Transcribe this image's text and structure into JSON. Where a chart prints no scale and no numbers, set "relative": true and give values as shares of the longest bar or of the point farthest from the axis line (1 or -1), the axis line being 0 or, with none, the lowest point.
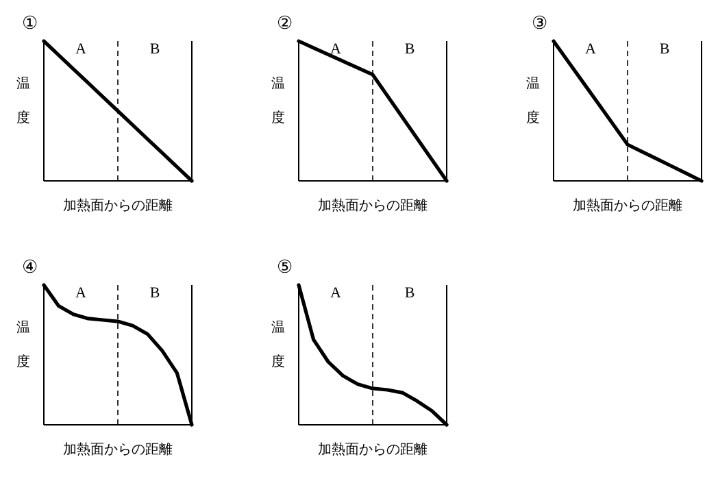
{
  "chart_data": [
    {
      "type": "line",
      "title": "①",
      "ylabel": "温度",
      "xlabel": "加熱面からの距離",
      "relative": true,
      "categories": [
        null,
        null,
        null,
        null,
        null,
        null,
        null,
        null,
        null,
        null,
        null
      ],
      "series": [
        {
          "color": "#000000",
          "values": [
            1,
            0.9,
            0.8,
            0.7,
            0.6,
            0.5,
            0.4,
            0.3,
            0.2,
            0.1,
            0
          ]
        }
      ],
      "annotations": [
        "A",
        "B"
      ]
    },
    {
      "type": "line",
      "title": "②",
      "ylabel": "温度",
      "xlabel": "加熱面からの距離",
      "relative": true,
      "categories": [
        null,
        null,
        null,
        null,
        null,
        null,
        null,
        null,
        null,
        null,
        null
      ],
      "series": [
        {
          "color": "#000000",
          "values": [
            1,
            0.952,
            0.904,
            0.856,
            0.808,
            0.76,
            0.608,
            0.456,
            0.304,
            0.152,
            0
          ]
        }
      ],
      "annotations": [
        "A",
        "B"
      ]
    },
    {
      "type": "line",
      "title": "③",
      "ylabel": "温度",
      "xlabel": "加熱面からの距離",
      "relative": true,
      "categories": [
        null,
        null,
        null,
        null,
        null,
        null,
        null,
        null,
        null,
        null,
        null
      ],
      "series": [
        {
          "color": "#000000",
          "values": [
            1,
            0.852,
            0.704,
            0.556,
            0.408,
            0.26,
            0.208,
            0.156,
            0.104,
            0.052,
            0
          ]
        }
      ],
      "annotations": [
        "A",
        "B"
      ]
    },
    {
      "type": "line",
      "title": "④",
      "ylabel": "温度",
      "xlabel": "加熱面からの距離",
      "relative": true,
      "categories": [
        null,
        null,
        null,
        null,
        null,
        null,
        null,
        null,
        null,
        null,
        null
      ],
      "series": [
        {
          "color": "#000000",
          "values": [
            1,
            0.85,
            0.79,
            0.76,
            0.75,
            0.74,
            0.71,
            0.65,
            0.53,
            0.37,
            0
          ]
        }
      ],
      "annotations": [
        "A",
        "B"
      ]
    },
    {
      "type": "line",
      "title": "⑤",
      "ylabel": "温度",
      "xlabel": "加熱面からの距離",
      "relative": true,
      "categories": [
        null,
        null,
        null,
        null,
        null,
        null,
        null,
        null,
        null,
        null,
        null
      ],
      "series": [
        {
          "color": "#000000",
          "values": [
            1,
            0.61,
            0.45,
            0.35,
            0.29,
            0.26,
            0.25,
            0.23,
            0.17,
            0.1,
            0
          ]
        }
      ],
      "annotations": [
        "A",
        "B"
      ]
    }
  ]
}
